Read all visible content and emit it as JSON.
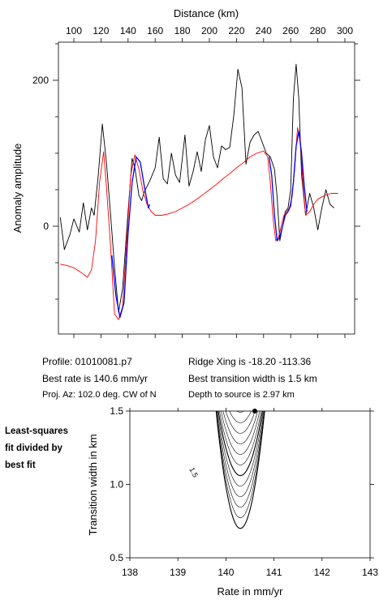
{
  "chart_data": [
    {
      "type": "line",
      "xlabel": "Distance (km)",
      "ylabel": "Anomaly amplitude",
      "xlim": [
        90,
        305
      ],
      "ylim": [
        -160,
        250
      ],
      "x_ticks": [
        100,
        120,
        140,
        160,
        180,
        200,
        220,
        240,
        260,
        280,
        300
      ],
      "y_ticks": [
        0,
        200
      ],
      "series": [
        {
          "color": "#000000",
          "x": [
            90,
            93,
            97,
            100,
            104,
            107,
            110,
            113,
            115,
            118,
            121,
            124,
            127,
            130,
            133,
            136,
            140,
            143,
            145,
            148,
            150,
            152,
            156,
            160,
            163,
            166,
            169,
            172,
            175,
            178,
            182,
            185,
            188,
            191,
            194,
            197,
            200,
            203,
            206,
            209,
            212,
            215,
            218,
            221,
            224,
            227,
            230,
            233,
            236,
            239,
            242,
            245,
            248,
            250,
            252,
            254,
            256,
            258,
            260,
            262,
            264,
            266,
            268,
            271,
            274,
            277,
            280,
            283,
            286,
            289,
            292
          ],
          "y": [
            12,
            -32,
            -12,
            10,
            -8,
            32,
            -5,
            25,
            15,
            70,
            140,
            88,
            18,
            -55,
            -118,
            -85,
            20,
            93,
            80,
            42,
            35,
            47,
            62,
            80,
            122,
            65,
            58,
            100,
            70,
            60,
            125,
            55,
            75,
            102,
            75,
            118,
            138,
            95,
            80,
            110,
            105,
            108,
            152,
            215,
            190,
            85,
            115,
            125,
            130,
            115,
            100,
            95,
            78,
            40,
            -20,
            0,
            20,
            25,
            50,
            175,
            222,
            175,
            70,
            15,
            45,
            25,
            -5,
            25,
            50,
            30,
            25
          ]
        },
        {
          "color": "#ff0000",
          "x": [
            90,
            95,
            100,
            105,
            110,
            113,
            116,
            119,
            122,
            124,
            127,
            130,
            133,
            136,
            139,
            142,
            145,
            148,
            151,
            154,
            157,
            160,
            165,
            170,
            175,
            180,
            185,
            190,
            195,
            200,
            205,
            210,
            215,
            220,
            225,
            230,
            235,
            240,
            243,
            245,
            247,
            249,
            251,
            253,
            255,
            257,
            259,
            261,
            263,
            265,
            267,
            269,
            271,
            274,
            277,
            280,
            285,
            290,
            295
          ],
          "y": [
            -52,
            -54,
            -57,
            -63,
            -70,
            -60,
            -20,
            60,
            102,
            55,
            -25,
            -120,
            -128,
            -110,
            -20,
            70,
            98,
            78,
            48,
            30,
            20,
            15,
            15,
            17,
            20,
            25,
            30,
            36,
            43,
            50,
            57,
            65,
            72,
            80,
            87,
            95,
            100,
            103,
            95,
            60,
            10,
            -20,
            -15,
            0,
            15,
            20,
            25,
            40,
            80,
            135,
            120,
            60,
            15,
            20,
            30,
            37,
            42,
            45,
            45
          ]
        },
        {
          "color": "#0000ff",
          "x": [
            128,
            131,
            134,
            137,
            140,
            143,
            146,
            149,
            152,
            155,
            156
          ],
          "y": [
            -40,
            -95,
            -125,
            -105,
            -10,
            60,
            95,
            88,
            55,
            25,
            30
          ]
        },
        {
          "color": "#0000ff",
          "x": [
            244,
            246,
            248,
            250,
            252,
            254,
            256,
            258,
            260,
            262,
            264,
            266,
            268,
            270,
            272
          ],
          "y": [
            95,
            70,
            15,
            -20,
            -15,
            0,
            15,
            20,
            28,
            60,
            110,
            130,
            100,
            55,
            20
          ]
        }
      ]
    },
    {
      "type": "contour",
      "xlabel": "Rate in mm/yr",
      "ylabel": "Transition width in km",
      "xlim": [
        138,
        143
      ],
      "ylim": [
        0.5,
        1.5
      ],
      "x_ticks": [
        138,
        139,
        140,
        141,
        142,
        143
      ],
      "y_ticks": [
        0.5,
        1.0,
        1.5
      ],
      "contour_label": "1.5",
      "best_fit_point": {
        "rate": 140.6,
        "width": 1.5
      },
      "min_width_at_rate_140_3": 0.7
    }
  ],
  "info": {
    "profile": "Profile: 01010081.p7",
    "ridge": "Ridge Xing is -18.20 -113.36",
    "best_rate": "Best rate is 140.6 mm/yr",
    "best_width": "Best transition width is 1.5 km",
    "proj_az": "Proj. Az: 102.0 deg. CW of N",
    "depth": "Depth to source is   2.97 km"
  },
  "side_note": "Least-squares\nfit divided by\nbest fit"
}
